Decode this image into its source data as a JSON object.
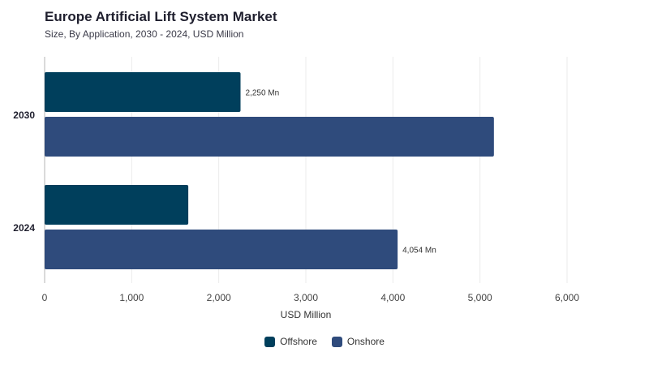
{
  "chart_data": {
    "type": "bar",
    "orientation": "horizontal",
    "title": "Europe Artificial Lift System Market",
    "subtitle": "Size, By Application, 2030 - 2024, USD Million",
    "xlabel": "USD Million",
    "ylabel": "",
    "categories": [
      "2030",
      "2024"
    ],
    "series": [
      {
        "name": "Offshore",
        "color": "#003f5c",
        "values": [
          2250,
          1650
        ],
        "labels": [
          "2,250 Mn",
          ""
        ]
      },
      {
        "name": "Onshore",
        "color": "#2f4b7c",
        "values": [
          5160,
          4054
        ],
        "labels": [
          "",
          "4,054 Mn"
        ]
      }
    ],
    "xlim": [
      0,
      6000
    ],
    "xticks": [
      0,
      1000,
      2000,
      3000,
      4000,
      5000,
      6000
    ],
    "xtick_labels": [
      "0",
      "1,000",
      "2,000",
      "3,000",
      "4,000",
      "5,000",
      "6,000"
    ],
    "grid": true,
    "legend_position": "bottom"
  }
}
